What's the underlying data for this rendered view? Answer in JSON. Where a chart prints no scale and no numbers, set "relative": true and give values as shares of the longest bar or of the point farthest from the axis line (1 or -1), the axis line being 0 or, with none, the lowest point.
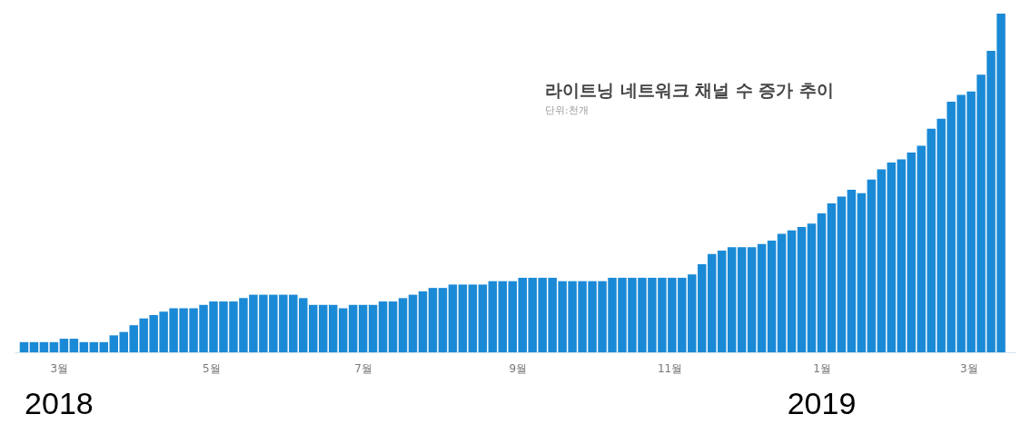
{
  "chart_data": {
    "type": "bar",
    "title": "라이트닝 네트워크 채널 수 증가 추이",
    "subtitle": "단위:천개",
    "relative": true,
    "grid": false,
    "x": [
      "2018-02-15",
      "2018-02-19",
      "2018-02-23",
      "2018-02-27",
      "2018-03-03",
      "2018-03-07",
      "2018-03-11",
      "2018-03-15",
      "2018-03-19",
      "2018-03-23",
      "2018-03-27",
      "2018-03-31",
      "2018-04-04",
      "2018-04-08",
      "2018-04-12",
      "2018-04-16",
      "2018-04-20",
      "2018-04-24",
      "2018-04-28",
      "2018-05-02",
      "2018-05-06",
      "2018-05-10",
      "2018-05-14",
      "2018-05-18",
      "2018-05-22",
      "2018-05-26",
      "2018-05-30",
      "2018-06-03",
      "2018-06-07",
      "2018-06-11",
      "2018-06-15",
      "2018-06-19",
      "2018-06-23",
      "2018-06-27",
      "2018-07-01",
      "2018-07-05",
      "2018-07-09",
      "2018-07-13",
      "2018-07-17",
      "2018-07-21",
      "2018-07-25",
      "2018-07-29",
      "2018-08-02",
      "2018-08-06",
      "2018-08-10",
      "2018-08-14",
      "2018-08-18",
      "2018-08-22",
      "2018-08-26",
      "2018-08-30",
      "2018-09-03",
      "2018-09-07",
      "2018-09-11",
      "2018-09-15",
      "2018-09-19",
      "2018-09-23",
      "2018-09-27",
      "2018-10-01",
      "2018-10-05",
      "2018-10-09",
      "2018-10-13",
      "2018-10-17",
      "2018-10-21",
      "2018-10-25",
      "2018-10-29",
      "2018-11-02",
      "2018-11-06",
      "2018-11-10",
      "2018-11-14",
      "2018-11-18",
      "2018-11-22",
      "2018-11-26",
      "2018-11-30",
      "2018-12-04",
      "2018-12-08",
      "2018-12-12",
      "2018-12-16",
      "2018-12-20",
      "2018-12-24",
      "2018-12-28",
      "2019-01-01",
      "2019-01-05",
      "2019-01-09",
      "2019-01-13",
      "2019-01-17",
      "2019-01-21",
      "2019-01-25",
      "2019-01-29",
      "2019-02-02",
      "2019-02-06",
      "2019-02-10",
      "2019-02-14",
      "2019-02-18",
      "2019-02-22",
      "2019-02-26",
      "2019-03-02",
      "2019-03-06",
      "2019-03-10",
      "2019-03-14"
    ],
    "values": [
      0.03,
      0.03,
      0.03,
      0.03,
      0.04,
      0.04,
      0.03,
      0.03,
      0.03,
      0.05,
      0.06,
      0.08,
      0.1,
      0.11,
      0.12,
      0.13,
      0.13,
      0.13,
      0.14,
      0.15,
      0.15,
      0.15,
      0.16,
      0.17,
      0.17,
      0.17,
      0.17,
      0.17,
      0.16,
      0.14,
      0.14,
      0.14,
      0.13,
      0.14,
      0.14,
      0.14,
      0.15,
      0.15,
      0.16,
      0.17,
      0.18,
      0.19,
      0.19,
      0.2,
      0.2,
      0.2,
      0.2,
      0.21,
      0.21,
      0.21,
      0.22,
      0.22,
      0.22,
      0.22,
      0.21,
      0.21,
      0.21,
      0.21,
      0.21,
      0.22,
      0.22,
      0.22,
      0.22,
      0.22,
      0.22,
      0.22,
      0.22,
      0.23,
      0.26,
      0.29,
      0.3,
      0.31,
      0.31,
      0.31,
      0.32,
      0.33,
      0.35,
      0.36,
      0.37,
      0.38,
      0.41,
      0.44,
      0.46,
      0.48,
      0.47,
      0.51,
      0.54,
      0.56,
      0.57,
      0.59,
      0.61,
      0.66,
      0.69,
      0.74,
      0.76,
      0.77,
      0.82,
      0.89,
      1
    ],
    "color": "#1b8ad6",
    "xlim": [
      "2018-02-13",
      "2019-03-18"
    ],
    "xticks": [
      {
        "value": "2018-03-01",
        "label": "3월"
      },
      {
        "value": "2018-05-01",
        "label": "5월"
      },
      {
        "value": "2018-07-01",
        "label": "7월"
      },
      {
        "value": "2018-09-01",
        "label": "9월"
      },
      {
        "value": "2018-11-01",
        "label": "11월"
      },
      {
        "value": "2019-01-01",
        "label": "1월"
      },
      {
        "value": "2019-03-01",
        "label": "3월"
      }
    ],
    "annotations": [
      "2018",
      "2019"
    ]
  }
}
